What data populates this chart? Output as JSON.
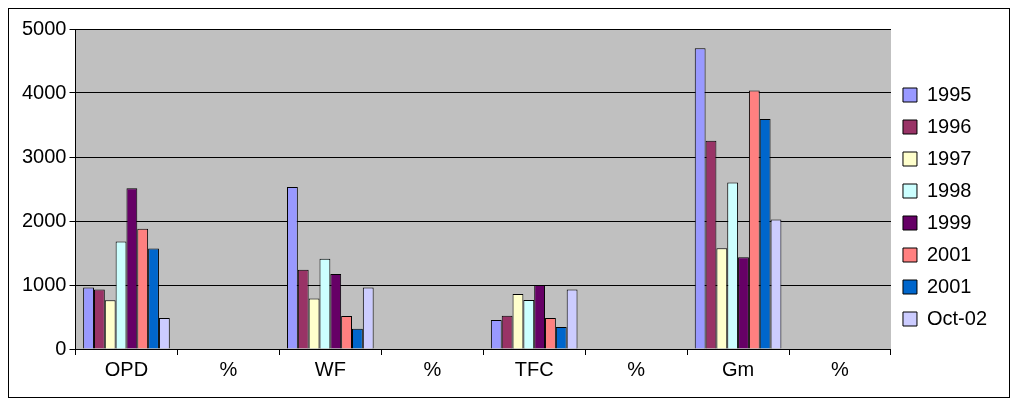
{
  "chart_data": {
    "type": "bar",
    "categories": [
      "OPD",
      "%",
      "WF",
      "%",
      "TFC",
      "%",
      "Gm",
      "%"
    ],
    "series": [
      {
        "name": "1995",
        "color": "#9999ff",
        "values": [
          960,
          null,
          2530,
          null,
          455,
          null,
          4700,
          null
        ]
      },
      {
        "name": "1996",
        "color": "#993366",
        "values": [
          930,
          null,
          1240,
          null,
          520,
          null,
          3255,
          null
        ]
      },
      {
        "name": "1997",
        "color": "#ffffcc",
        "values": [
          760,
          null,
          790,
          null,
          860,
          null,
          1575,
          null
        ]
      },
      {
        "name": "1998",
        "color": "#ccffff",
        "values": [
          1680,
          null,
          1410,
          null,
          765,
          null,
          2600,
          null
        ]
      },
      {
        "name": "1999",
        "color": "#660066",
        "values": [
          2510,
          null,
          1170,
          null,
          1000,
          null,
          1435,
          null
        ]
      },
      {
        "name": "2001",
        "color": "#ff8080",
        "values": [
          1880,
          null,
          515,
          null,
          485,
          null,
          4040,
          null
        ]
      },
      {
        "name": "2001",
        "color": "#0066cc",
        "values": [
          1570,
          null,
          315,
          null,
          345,
          null,
          3595,
          null
        ]
      },
      {
        "name": "Oct-02",
        "color": "#ccccff",
        "values": [
          485,
          null,
          960,
          null,
          930,
          null,
          2025,
          null
        ]
      }
    ],
    "ylim": [
      0,
      5000
    ],
    "yticks": [
      0,
      1000,
      2000,
      3000,
      4000,
      5000
    ],
    "grid": "y",
    "legend": "right"
  }
}
